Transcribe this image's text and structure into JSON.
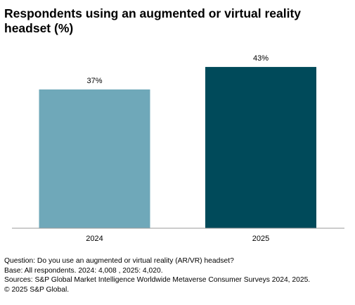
{
  "title": "Respondents using an augmented or virtual reality headset (%)",
  "chart_data": {
    "type": "bar",
    "categories": [
      "2024",
      "2025"
    ],
    "values": [
      37,
      43
    ],
    "data_labels": [
      "37%",
      "43%"
    ],
    "colors": [
      "#6FA8B9",
      "#004A5A"
    ],
    "ylim": [
      0,
      45
    ],
    "xlabel": "",
    "ylabel": "",
    "grid": false,
    "legend": "none"
  },
  "notes": {
    "question": "Question: Do you use an augmented or virtual reality (AR/VR) headset?",
    "base": "Base: All respondents. 2024: 4,008 , 2025: 4,020.",
    "sources": "Sources: S&P Global Market Intelligence Worldwide Metaverse Consumer Surveys 2024, 2025.",
    "copyright": "© 2025 S&P Global."
  }
}
